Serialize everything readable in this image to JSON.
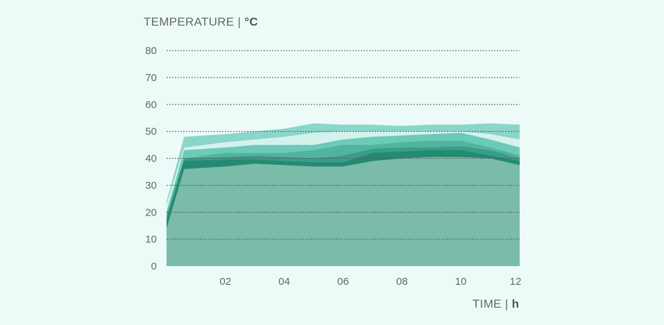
{
  "chart_data": {
    "type": "area",
    "ylabel": "TEMPERATURE",
    "yunit": "°C",
    "xlabel": "TIME",
    "xunit": "h",
    "ylim": [
      0,
      80
    ],
    "xlim": [
      0,
      12
    ],
    "yticks": [
      "0",
      "10",
      "20",
      "30",
      "40",
      "50",
      "60",
      "70",
      "80"
    ],
    "xticks": [
      "02",
      "04",
      "06",
      "08",
      "10",
      "12"
    ],
    "grid": true,
    "x": [
      0,
      0.6,
      2,
      3,
      4,
      5,
      6,
      7,
      8,
      9,
      10,
      11,
      12
    ],
    "series": [
      {
        "color": "#8ad6c8",
        "values": [
          24,
          48,
          49,
          50,
          51,
          53,
          52.5,
          52.5,
          52,
          52.5,
          52.5,
          53,
          52.5
        ]
      },
      {
        "color": "#d6f1ec",
        "values": [
          23,
          44,
          46,
          47,
          48,
          49.5,
          50,
          50,
          50,
          50,
          50,
          49,
          47
        ]
      },
      {
        "color": "#6ccab8",
        "values": [
          20,
          43,
          44,
          45,
          45,
          45,
          47,
          48,
          48.5,
          49,
          49.5,
          47,
          44
        ]
      },
      {
        "color": "#52b39f",
        "values": [
          19,
          40,
          42,
          42,
          42,
          43,
          45,
          45,
          46,
          46.5,
          46.5,
          44,
          41
        ]
      },
      {
        "color": "#3a9d88",
        "values": [
          18,
          40,
          40.5,
          41,
          40.5,
          40,
          41,
          43.5,
          44,
          44,
          44.5,
          43,
          40
        ]
      },
      {
        "color": "#258a72",
        "values": [
          17,
          39,
          39.5,
          39.5,
          39,
          38.5,
          38.5,
          42,
          42.5,
          43,
          43,
          41,
          39
        ]
      },
      {
        "color": "#7abba9",
        "values": [
          14,
          36,
          37,
          38,
          37.5,
          37,
          37,
          39,
          40,
          40.5,
          40.5,
          40,
          37.5
        ]
      }
    ]
  }
}
